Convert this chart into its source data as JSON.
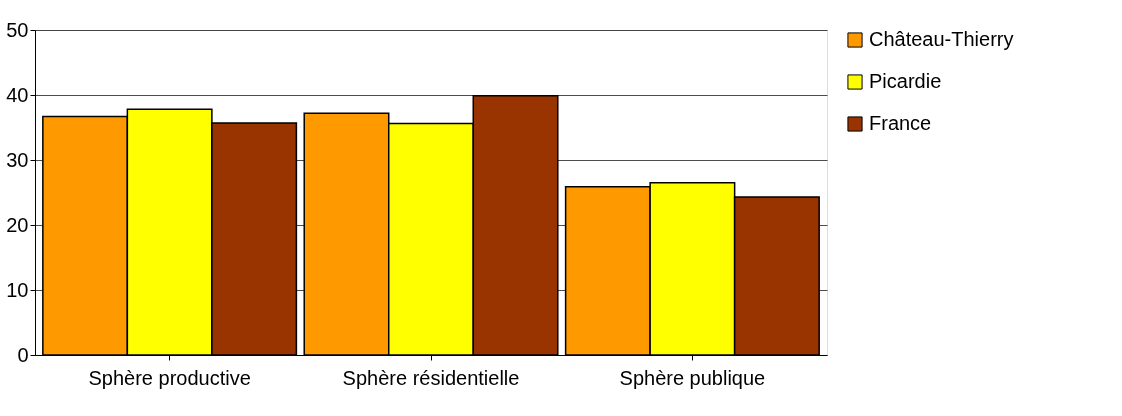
{
  "chart_data": {
    "type": "bar",
    "categories": [
      "Sphère productive",
      "Sphère résidentielle",
      "Sphère publique"
    ],
    "series": [
      {
        "name": "Château-Thierry",
        "color": "#ff9900",
        "values": [
          36.7,
          37.2,
          25.9
        ]
      },
      {
        "name": "Picardie",
        "color": "#ffff00",
        "values": [
          37.8,
          35.6,
          26.5
        ]
      },
      {
        "name": "France",
        "color": "#993300",
        "values": [
          35.7,
          39.9,
          24.3
        ]
      }
    ],
    "ylim": [
      0,
      50
    ],
    "yticks": [
      0,
      10,
      20,
      30,
      40,
      50
    ],
    "grid": "y",
    "legend": "right"
  }
}
